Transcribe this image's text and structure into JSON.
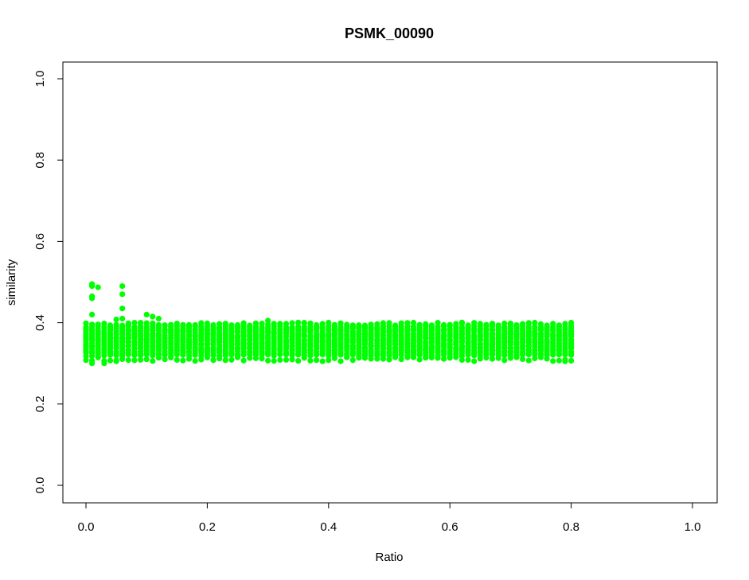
{
  "chart_data": {
    "type": "scatter",
    "title": "PSMK_00090",
    "xlabel": "Ratio",
    "ylabel": "similarity",
    "xlim": [
      0.0,
      1.0
    ],
    "ylim": [
      0.0,
      1.0
    ],
    "x_ticks": [
      "0.0",
      "0.2",
      "0.4",
      "0.6",
      "0.8",
      "1.0"
    ],
    "y_ticks": [
      "0.0",
      "0.2",
      "0.4",
      "0.6",
      "0.8",
      "1.0"
    ],
    "grid": false,
    "legend": "none",
    "point_color": "#00ff00",
    "series": [
      {
        "x_range": [
          0.0,
          0.8
        ],
        "x_step": 0.01,
        "band_lower": 0.32,
        "band_upper": 0.39,
        "points": [
          [
            0.01,
            0.495
          ],
          [
            0.01,
            0.49
          ],
          [
            0.02,
            0.487
          ],
          [
            0.06,
            0.49
          ],
          [
            0.06,
            0.47
          ],
          [
            0.01,
            0.465
          ],
          [
            0.01,
            0.46
          ],
          [
            0.06,
            0.435
          ],
          [
            0.01,
            0.42
          ],
          [
            0.06,
            0.41
          ],
          [
            0.05,
            0.408
          ],
          [
            0.1,
            0.42
          ],
          [
            0.11,
            0.415
          ],
          [
            0.12,
            0.41
          ],
          [
            0.07,
            0.395
          ],
          [
            0.09,
            0.38
          ],
          [
            0.3,
            0.405
          ],
          [
            0.36,
            0.4
          ],
          [
            0.62,
            0.398
          ],
          [
            0.7,
            0.398
          ],
          [
            0.43,
            0.315
          ],
          [
            0.5,
            0.31
          ],
          [
            0.79,
            0.305
          ],
          [
            0.0,
            0.345
          ],
          [
            0.0,
            0.34
          ],
          [
            0.01,
            0.3
          ],
          [
            0.03,
            0.3
          ],
          [
            0.05,
            0.305
          ],
          [
            0.8,
            0.37
          ],
          [
            0.8,
            0.35
          ],
          [
            0.8,
            0.34
          ]
        ]
      }
    ]
  }
}
